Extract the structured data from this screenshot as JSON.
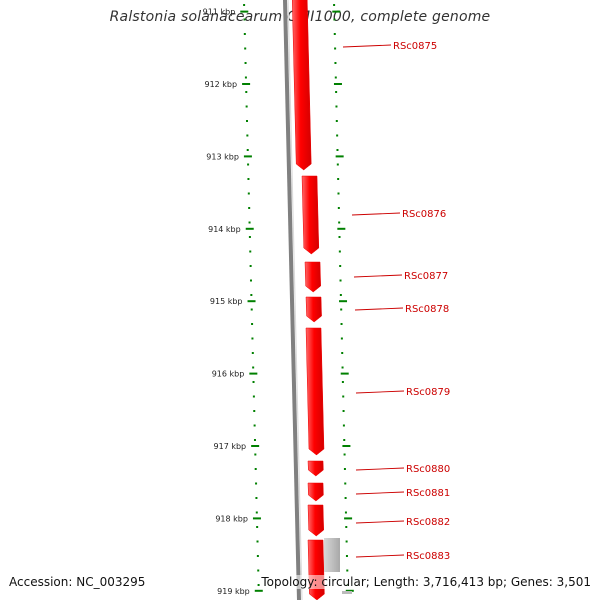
{
  "title": "Ralstonia solanacearum GMI1000, complete genome",
  "scale_labels": [
    {
      "kbp": 911,
      "text": "911 kbp"
    },
    {
      "kbp": 912,
      "text": "912 kbp"
    },
    {
      "kbp": 913,
      "text": "913 kbp"
    },
    {
      "kbp": 914,
      "text": "914 kbp"
    },
    {
      "kbp": 915,
      "text": "915 kbp"
    },
    {
      "kbp": 916,
      "text": "916 kbp"
    },
    {
      "kbp": 917,
      "text": "917 kbp"
    },
    {
      "kbp": 918,
      "text": "918 kbp"
    },
    {
      "kbp": 919,
      "text": "919 kbp"
    }
  ],
  "genes": [
    {
      "label": "RSc0875"
    },
    {
      "label": "RSc0876"
    },
    {
      "label": "RSc0877"
    },
    {
      "label": "RSc0878"
    },
    {
      "label": "RSc0879"
    },
    {
      "label": "RSc0880"
    },
    {
      "label": "RSc0881"
    },
    {
      "label": "RSc0882"
    },
    {
      "label": "RSc0883"
    }
  ],
  "colors": {
    "gene": "#ff0000",
    "backbone": "#808080",
    "ticks": "#008000",
    "labels": "#cc0000",
    "other_feature": "#bbbbbb"
  },
  "footer": {
    "accession": "Accession: NC_003295",
    "topology": "Topology: circular; Length: 3,716,413 bp; Genes: 3,501"
  }
}
